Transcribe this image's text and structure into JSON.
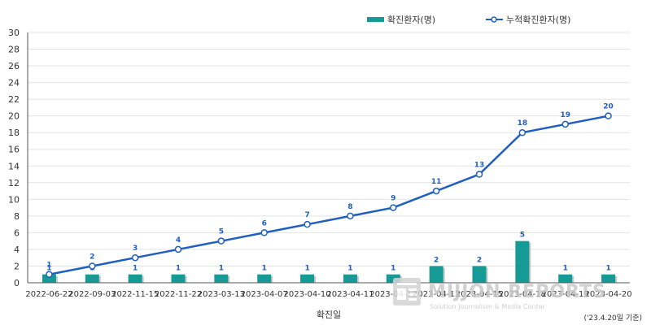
{
  "chart_data": {
    "type": "bar",
    "categories": [
      "2022-06-22",
      "2022-09-03",
      "2022-11-15",
      "2022-11-22",
      "2023-03-13",
      "2023-04-07",
      "2023-04-10",
      "2023-04-11",
      "2023-04-12",
      "2023-04-13",
      "2023-04-15",
      "2023-04-18",
      "2023-04-19",
      "2023-04-20"
    ],
    "series": [
      {
        "name": "확진환자(명)",
        "type": "bar",
        "values": [
          1,
          1,
          1,
          1,
          1,
          1,
          1,
          1,
          1,
          2,
          2,
          5,
          1,
          1
        ],
        "color": "#159a96"
      },
      {
        "name": "누적확진환자(명)",
        "type": "line",
        "values": [
          1,
          2,
          3,
          4,
          5,
          6,
          7,
          8,
          9,
          11,
          13,
          18,
          19,
          20
        ],
        "color": "#1f5fbf"
      }
    ],
    "xlabel": "확진일",
    "ylabel": "",
    "ylim": [
      0,
      30
    ],
    "yticks": [
      0,
      2,
      4,
      6,
      8,
      10,
      12,
      14,
      16,
      18,
      20,
      22,
      24,
      26,
      28,
      30
    ],
    "grid": true,
    "legend_position": "top-right",
    "note": "('23.4.20일 기준)"
  },
  "watermark": {
    "title": "MIJJON REPORTS",
    "subtitle": "Solution Journalism & Media Center",
    "icon": "newspaper-icon"
  }
}
